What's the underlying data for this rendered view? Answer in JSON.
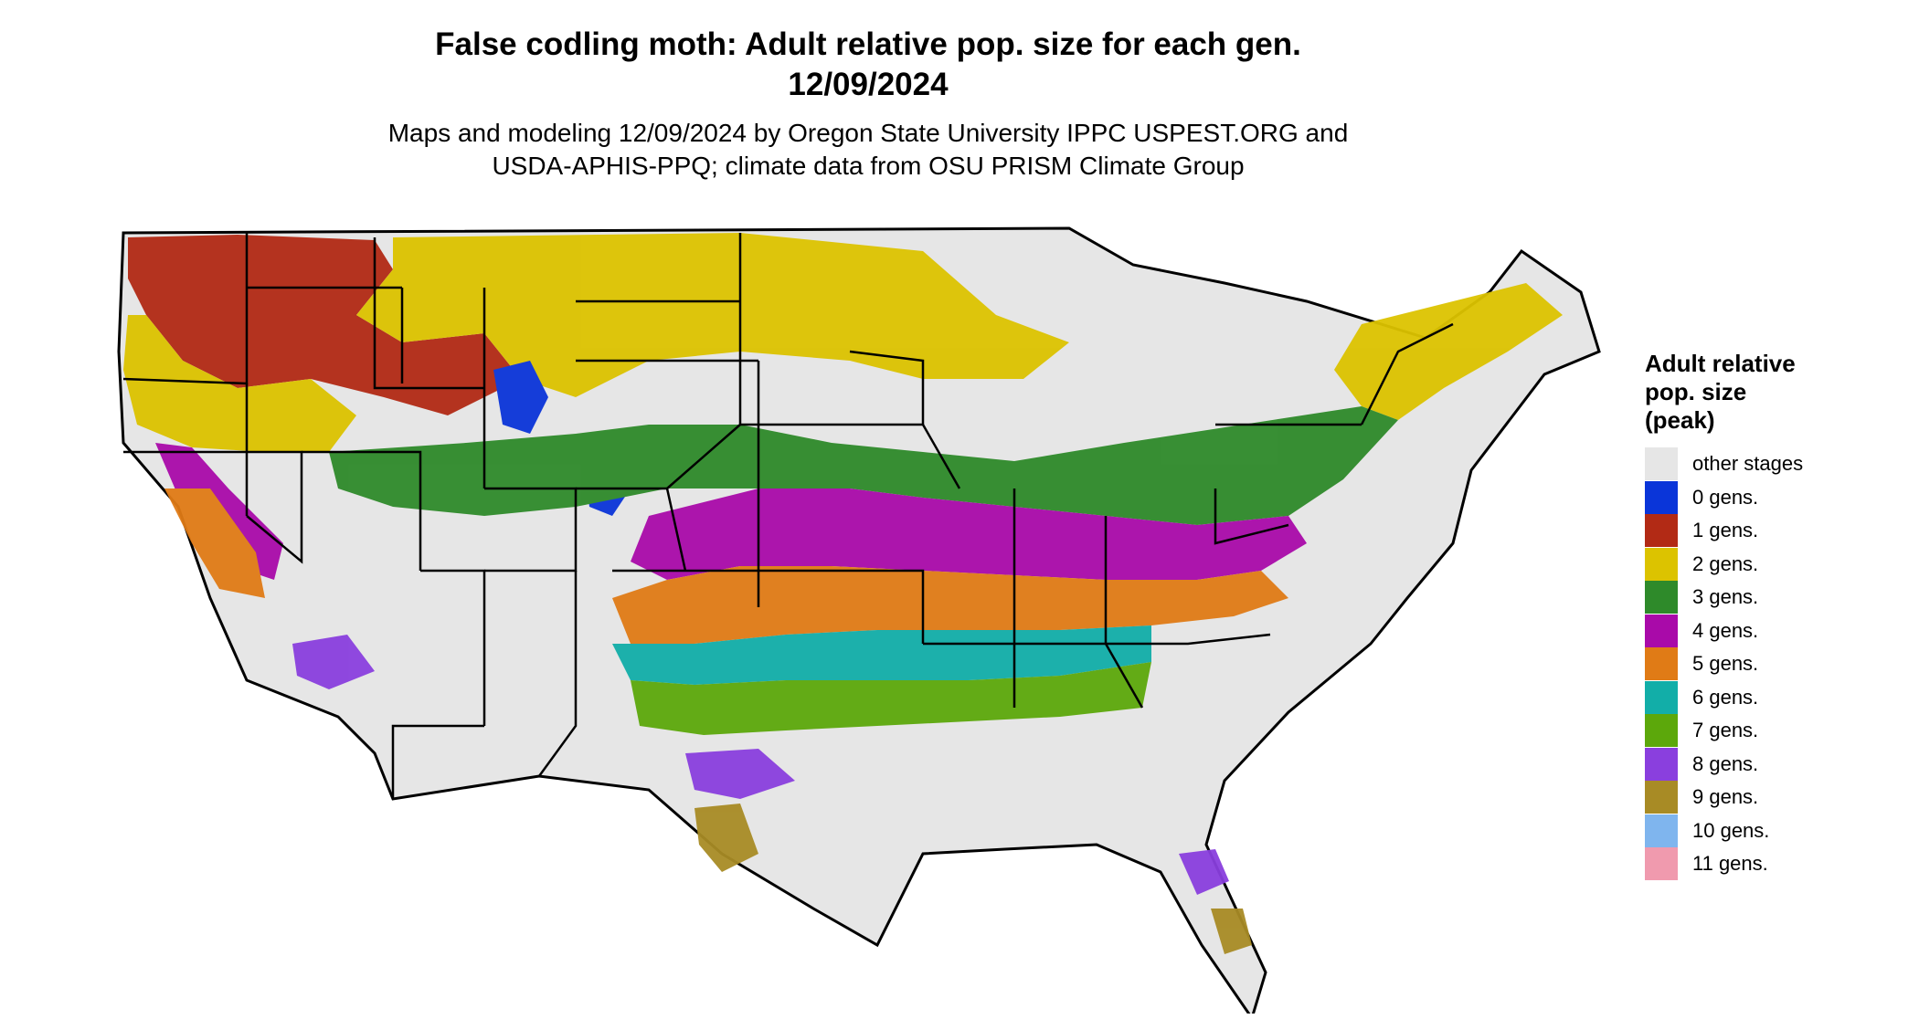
{
  "title_line1": "False codling moth: Adult relative pop. size for each gen.",
  "title_line2": "12/09/2024",
  "subtitle_line1": "Maps and modeling 12/09/2024 by Oregon State University IPPC USPEST.ORG and",
  "subtitle_line2": "USDA-APHIS-PPQ; climate data from OSU PRISM Climate Group",
  "legend": {
    "title_line1": "Adult relative",
    "title_line2": "pop. size",
    "title_line3": "(peak)",
    "items": [
      {
        "label": "other stages",
        "color": "#e6e6e6"
      },
      {
        "label": "0 gens.",
        "color": "#0a35d9"
      },
      {
        "label": "1 gens.",
        "color": "#b22a15"
      },
      {
        "label": "2 gens.",
        "color": "#dcc300"
      },
      {
        "label": "3 gens.",
        "color": "#2e8a2a"
      },
      {
        "label": "4 gens.",
        "color": "#a90aa9"
      },
      {
        "label": "5 gens.",
        "color": "#e07b16"
      },
      {
        "label": "6 gens.",
        "color": "#12aea8"
      },
      {
        "label": "7 gens.",
        "color": "#5ca80b"
      },
      {
        "label": "8 gens.",
        "color": "#8a3fde"
      },
      {
        "label": "9 gens.",
        "color": "#a88b25"
      },
      {
        "label": "10 gens.",
        "color": "#7fb5ee"
      },
      {
        "label": "11 gens.",
        "color": "#f09aae"
      }
    ]
  }
}
